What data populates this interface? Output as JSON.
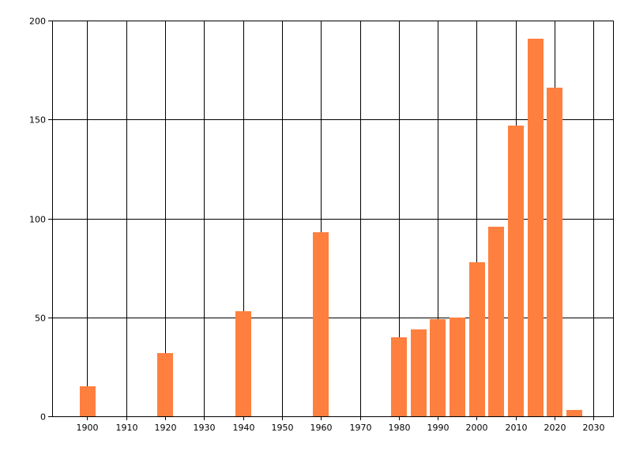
{
  "chart_data": {
    "type": "bar",
    "title": "",
    "xlabel": "",
    "ylabel": "",
    "xlim": [
      1891,
      2035
    ],
    "ylim": [
      0,
      200
    ],
    "x_ticks": [
      1900,
      1910,
      1920,
      1930,
      1940,
      1950,
      1960,
      1970,
      1980,
      1990,
      2000,
      2010,
      2020,
      2030
    ],
    "y_ticks": [
      0,
      50,
      100,
      150,
      200
    ],
    "grid": true,
    "bar_width_years": 4,
    "bar_color": "#ff7f3f",
    "series": [
      {
        "x": [
          1900,
          1920,
          1940,
          1960,
          1980,
          1985,
          1990,
          1995,
          2000,
          2005,
          2010,
          2015,
          2020,
          2025
        ],
        "values": [
          15,
          32,
          53,
          93,
          40,
          44,
          49,
          50,
          78,
          96,
          147,
          191,
          166,
          3
        ]
      }
    ]
  }
}
